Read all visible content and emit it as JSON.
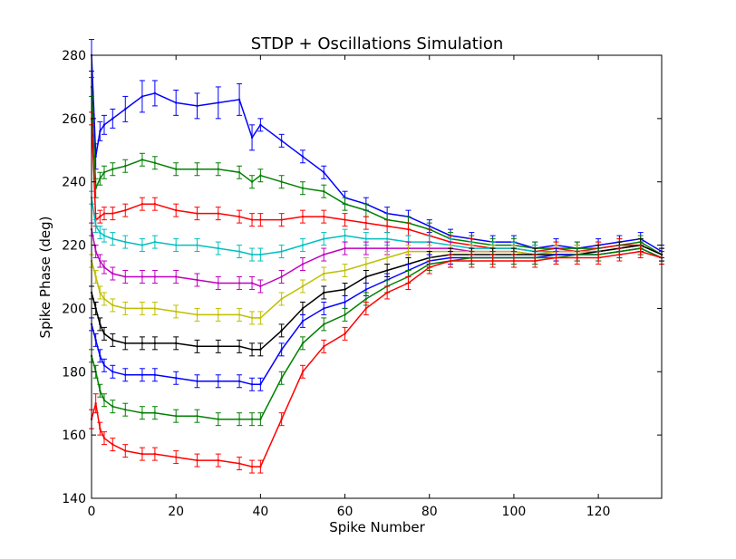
{
  "chart_data": {
    "type": "line",
    "title": "STDP + Oscillations Simulation",
    "xlabel": "Spike Number",
    "ylabel": "Spike Phase (deg)",
    "xlim": [
      0,
      135
    ],
    "ylim": [
      140,
      280
    ],
    "xticks": [
      0,
      20,
      40,
      60,
      80,
      100,
      120
    ],
    "yticks": [
      140,
      160,
      180,
      200,
      220,
      240,
      260,
      280
    ],
    "grid": false,
    "legend": "none",
    "error_bars": true,
    "x": [
      0,
      1,
      2,
      3,
      5,
      8,
      12,
      15,
      20,
      25,
      30,
      35,
      38,
      40,
      45,
      50,
      55,
      60,
      65,
      70,
      75,
      80,
      85,
      90,
      95,
      100,
      105,
      110,
      115,
      120,
      125,
      130,
      135
    ],
    "series": [
      {
        "color": "#0000ff",
        "values": [
          280,
          248,
          256,
          258,
          260,
          263,
          267,
          268,
          265,
          264,
          265,
          266,
          254,
          258,
          253,
          248,
          243,
          235,
          233,
          230,
          229,
          226,
          223,
          222,
          221,
          221,
          219,
          220,
          219,
          220,
          221,
          222,
          218
        ],
        "errors": [
          5,
          4,
          3,
          3,
          3,
          4,
          5,
          4,
          4,
          4,
          5,
          5,
          4,
          2,
          2,
          2,
          2,
          2,
          2,
          2,
          2,
          2,
          2,
          2,
          2,
          2,
          2,
          2,
          2,
          2,
          2,
          2,
          2
        ]
      },
      {
        "color": "#008000",
        "values": [
          270,
          238,
          241,
          243,
          244,
          245,
          247,
          246,
          244,
          244,
          244,
          243,
          240,
          242,
          240,
          238,
          237,
          233,
          231,
          228,
          227,
          225,
          222,
          221,
          220,
          220,
          219,
          219,
          219,
          219,
          220,
          221,
          217
        ],
        "errors": [
          3,
          3,
          2,
          2,
          2,
          2,
          2,
          2,
          2,
          2,
          2,
          2,
          2,
          2,
          2,
          2,
          2,
          2,
          2,
          2,
          2,
          2,
          2,
          2,
          2,
          2,
          2,
          2,
          2,
          2,
          2,
          2,
          2
        ]
      },
      {
        "color": "#ff0000",
        "values": [
          260,
          228,
          229,
          230,
          230,
          231,
          233,
          233,
          231,
          230,
          230,
          229,
          228,
          228,
          228,
          229,
          229,
          228,
          227,
          226,
          225,
          223,
          221,
          220,
          219,
          219,
          218,
          219,
          218,
          219,
          220,
          220,
          217
        ],
        "errors": [
          2,
          2,
          2,
          2,
          2,
          2,
          2,
          2,
          2,
          2,
          2,
          2,
          2,
          2,
          2,
          2,
          2,
          2,
          2,
          2,
          2,
          2,
          2,
          2,
          2,
          2,
          2,
          2,
          2,
          2,
          2,
          2,
          2
        ]
      },
      {
        "color": "#00bfbf",
        "values": [
          235,
          226,
          224,
          223,
          222,
          221,
          220,
          221,
          220,
          220,
          219,
          218,
          217,
          217,
          218,
          220,
          222,
          223,
          222,
          222,
          221,
          221,
          220,
          219,
          219,
          219,
          218,
          218,
          218,
          218,
          219,
          220,
          217
        ],
        "errors": [
          2,
          2,
          2,
          2,
          2,
          2,
          2,
          2,
          2,
          2,
          2,
          2,
          2,
          2,
          2,
          2,
          2,
          2,
          2,
          2,
          2,
          2,
          2,
          2,
          2,
          2,
          2,
          2,
          2,
          2,
          2,
          2,
          2
        ]
      },
      {
        "color": "#bf00bf",
        "values": [
          225,
          218,
          215,
          213,
          211,
          210,
          210,
          210,
          210,
          209,
          208,
          208,
          208,
          207,
          210,
          214,
          217,
          219,
          219,
          219,
          219,
          219,
          219,
          218,
          218,
          218,
          217,
          218,
          218,
          218,
          219,
          220,
          217
        ],
        "errors": [
          2,
          2,
          2,
          2,
          2,
          2,
          2,
          2,
          2,
          2,
          2,
          2,
          2,
          2,
          2,
          2,
          2,
          2,
          2,
          2,
          2,
          2,
          2,
          2,
          2,
          2,
          2,
          2,
          2,
          2,
          2,
          2,
          2
        ]
      },
      {
        "color": "#bfbf00",
        "values": [
          215,
          210,
          205,
          203,
          201,
          200,
          200,
          200,
          199,
          198,
          198,
          198,
          197,
          197,
          203,
          207,
          211,
          212,
          214,
          216,
          218,
          218,
          218,
          218,
          218,
          218,
          217,
          218,
          218,
          218,
          219,
          220,
          217
        ],
        "errors": [
          2,
          2,
          2,
          2,
          2,
          2,
          2,
          2,
          2,
          2,
          2,
          2,
          2,
          2,
          2,
          2,
          2,
          2,
          2,
          2,
          2,
          2,
          2,
          2,
          2,
          2,
          2,
          2,
          2,
          2,
          2,
          2,
          2
        ]
      },
      {
        "color": "#000000",
        "values": [
          205,
          200,
          195,
          192,
          190,
          189,
          189,
          189,
          189,
          188,
          188,
          188,
          187,
          187,
          193,
          200,
          205,
          206,
          210,
          212,
          214,
          216,
          217,
          217,
          217,
          217,
          217,
          217,
          217,
          218,
          219,
          220,
          217
        ],
        "errors": [
          2,
          2,
          2,
          2,
          2,
          2,
          2,
          2,
          2,
          2,
          2,
          2,
          2,
          2,
          2,
          2,
          2,
          2,
          2,
          2,
          2,
          2,
          2,
          2,
          2,
          2,
          2,
          2,
          2,
          2,
          2,
          2,
          2
        ]
      },
      {
        "color": "#0000ff",
        "values": [
          195,
          190,
          185,
          182,
          180,
          179,
          179,
          179,
          178,
          177,
          177,
          177,
          176,
          176,
          187,
          196,
          200,
          202,
          206,
          209,
          212,
          215,
          216,
          216,
          216,
          216,
          216,
          217,
          217,
          217,
          218,
          219,
          216
        ],
        "errors": [
          2,
          2,
          2,
          2,
          2,
          2,
          2,
          2,
          2,
          2,
          2,
          2,
          2,
          2,
          2,
          2,
          2,
          2,
          2,
          2,
          2,
          2,
          2,
          2,
          2,
          2,
          2,
          2,
          2,
          2,
          2,
          2,
          2
        ]
      },
      {
        "color": "#008000",
        "values": [
          185,
          180,
          174,
          171,
          169,
          168,
          167,
          167,
          166,
          166,
          165,
          165,
          165,
          165,
          178,
          189,
          195,
          198,
          203,
          207,
          210,
          214,
          215,
          216,
          216,
          216,
          216,
          216,
          217,
          217,
          218,
          219,
          216
        ],
        "errors": [
          2,
          2,
          2,
          2,
          2,
          2,
          2,
          2,
          2,
          2,
          2,
          2,
          2,
          2,
          2,
          2,
          2,
          2,
          2,
          2,
          2,
          2,
          2,
          2,
          2,
          2,
          2,
          2,
          2,
          2,
          2,
          2,
          2
        ]
      },
      {
        "color": "#ff0000",
        "values": [
          165,
          170,
          162,
          159,
          157,
          155,
          154,
          154,
          153,
          152,
          152,
          151,
          150,
          150,
          165,
          180,
          188,
          192,
          200,
          205,
          208,
          213,
          215,
          215,
          215,
          215,
          215,
          216,
          216,
          216,
          217,
          218,
          216
        ],
        "errors": [
          3,
          3,
          2,
          2,
          2,
          2,
          2,
          2,
          2,
          2,
          2,
          2,
          2,
          2,
          2,
          2,
          2,
          2,
          2,
          2,
          2,
          2,
          2,
          2,
          2,
          2,
          2,
          2,
          2,
          2,
          2,
          2,
          2
        ]
      }
    ]
  }
}
